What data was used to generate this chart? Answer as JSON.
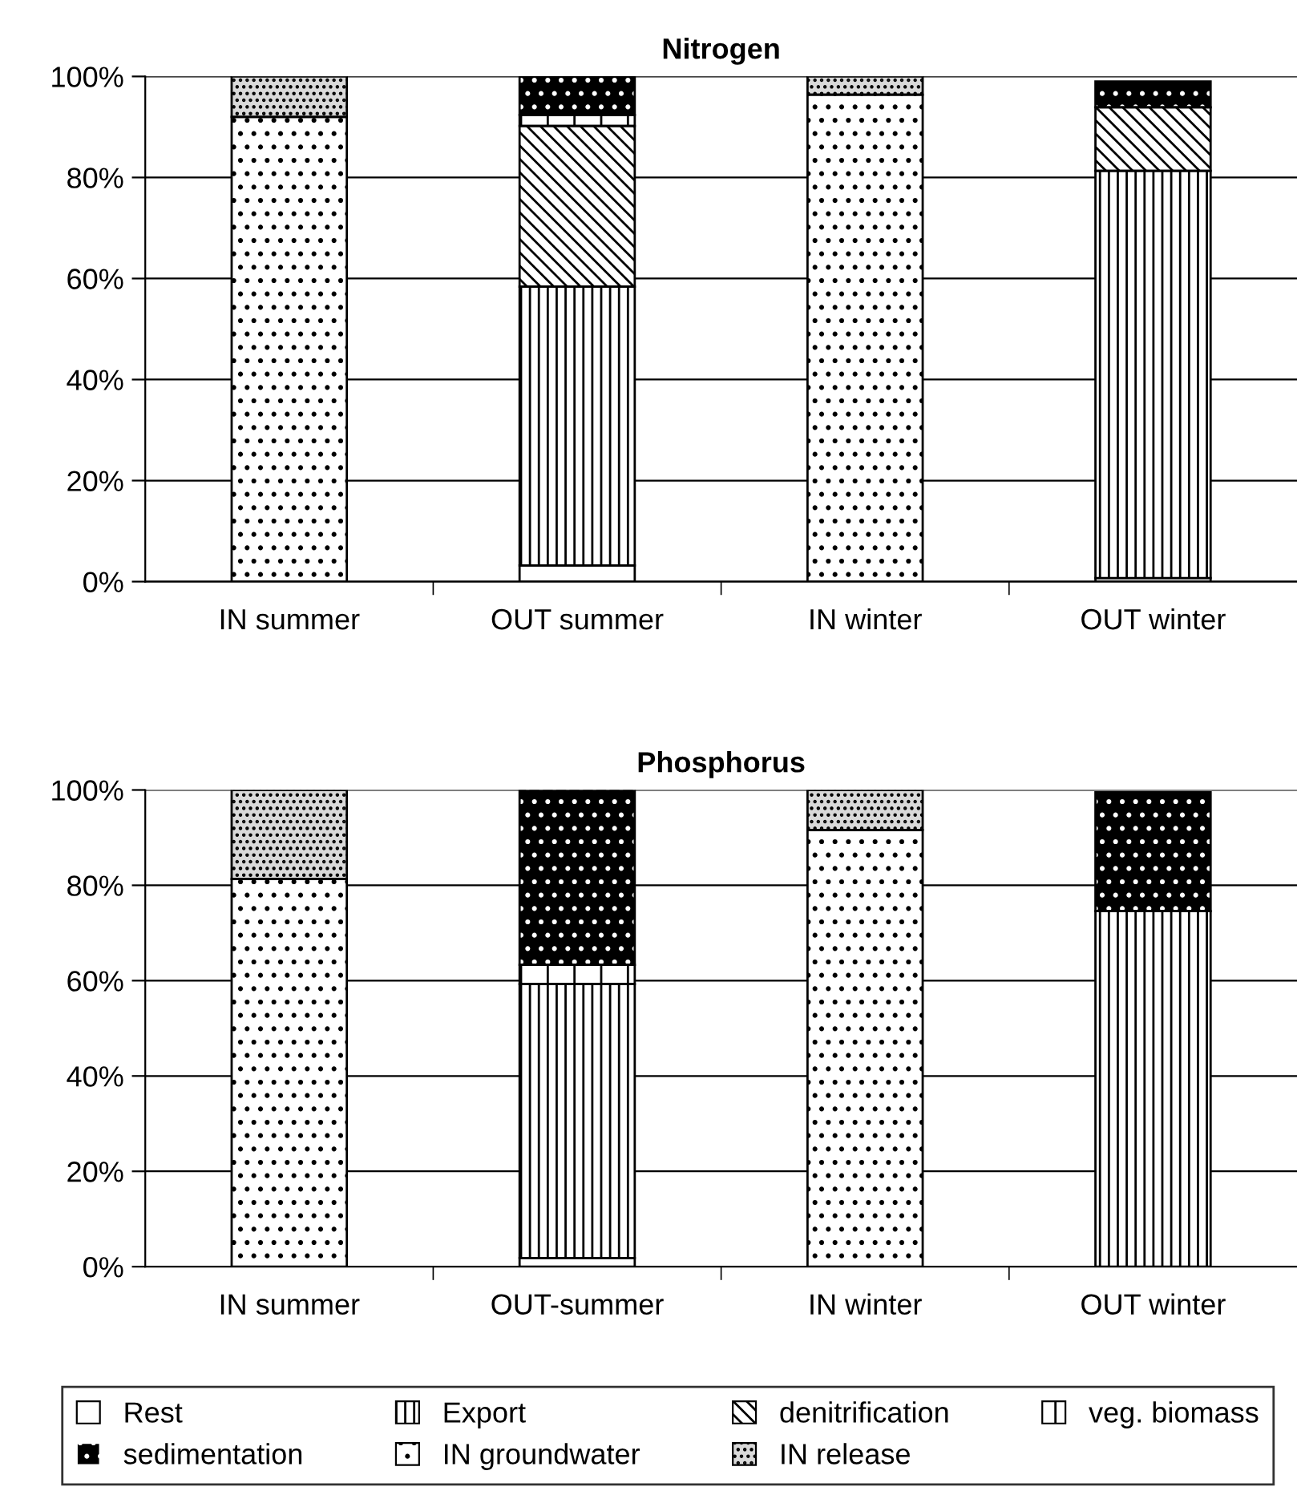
{
  "chart_data": [
    {
      "type": "bar",
      "stacked": true,
      "title": "Nitrogen",
      "categories": [
        "IN summer",
        "OUT summer",
        "IN winter",
        "OUT winter"
      ],
      "ylim": [
        0,
        100
      ],
      "yticks": [
        {
          "value": 0,
          "label": "0%"
        },
        {
          "value": 20,
          "label": "20%"
        },
        {
          "value": 40,
          "label": "40%"
        },
        {
          "value": 60,
          "label": "60%"
        },
        {
          "value": 80,
          "label": "80%"
        },
        {
          "value": 100,
          "label": "100%"
        }
      ],
      "grid": "y",
      "legend": "bottom",
      "series": [
        {
          "name": "Rest",
          "color": "#ffffff",
          "values": [
            null,
            3.2,
            null,
            0.7
          ]
        },
        {
          "name": "Export",
          "color": "#ffffff",
          "values": [
            null,
            55.2,
            null,
            80.6
          ]
        },
        {
          "name": "denitrification",
          "color": "#ffffff",
          "values": [
            null,
            31.8,
            null,
            12.6
          ]
        },
        {
          "name": "veg. biomass",
          "color": "#ffffff",
          "values": [
            null,
            2.2,
            null,
            null
          ]
        },
        {
          "name": "sedimentation",
          "color": "#000000",
          "values": [
            null,
            7.6,
            null,
            5.1
          ]
        },
        {
          "name": "IN groundwater",
          "color": "#ffffff",
          "values": [
            92,
            null,
            96.4,
            null
          ]
        },
        {
          "name": "IN release",
          "color": "#d9d9d9",
          "values": [
            8,
            null,
            3.6,
            null
          ]
        }
      ]
    },
    {
      "type": "bar",
      "stacked": true,
      "title": "Phosphorus",
      "categories": [
        "IN summer",
        "OUT-summer",
        "IN winter",
        "OUT winter"
      ],
      "ylim": [
        0,
        100
      ],
      "yticks": [
        {
          "value": 0,
          "label": "0%"
        },
        {
          "value": 20,
          "label": "20%"
        },
        {
          "value": 40,
          "label": "40%"
        },
        {
          "value": 60,
          "label": "60%"
        },
        {
          "value": 80,
          "label": "80%"
        },
        {
          "value": 100,
          "label": "100%"
        }
      ],
      "grid": "y",
      "series": [
        {
          "color": "#ffffff",
          "values": [
            null,
            1.8,
            null,
            null
          ]
        },
        {
          "color": "#ffffff",
          "values": [
            null,
            57.5,
            null,
            74.6
          ]
        },
        {
          "color": "#ffffff",
          "values": [
            null,
            null,
            null,
            null
          ]
        },
        {
          "color": "#ffffff",
          "values": [
            null,
            4.0,
            null,
            null
          ]
        },
        {
          "color": "#000000",
          "values": [
            null,
            36.7,
            null,
            24.9
          ]
        },
        {
          "color": "#ffffff",
          "values": [
            81.3,
            null,
            91.6,
            null
          ]
        },
        {
          "color": "#d9d9d9",
          "values": [
            18.7,
            null,
            8.4,
            null
          ]
        }
      ]
    }
  ]
}
